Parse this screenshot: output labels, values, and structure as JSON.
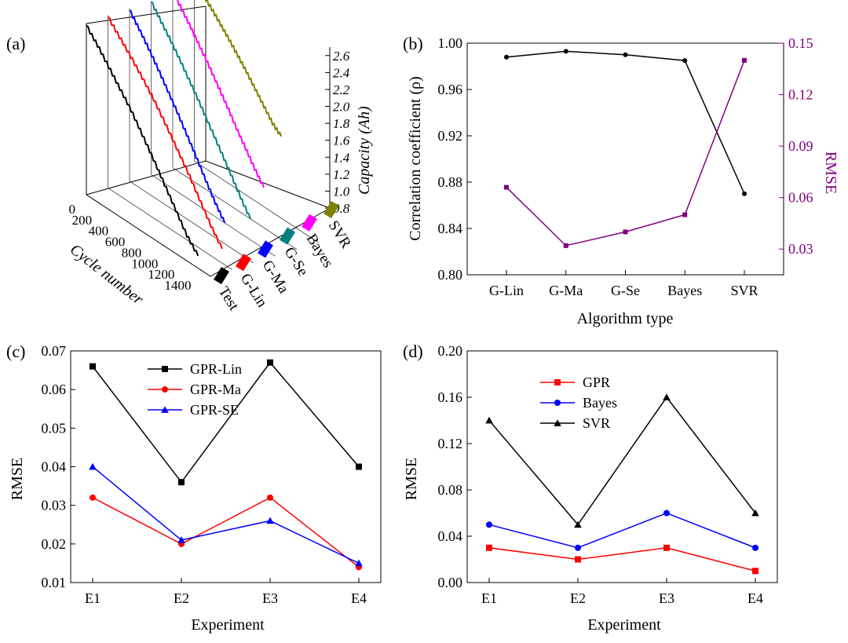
{
  "chart_data": [
    {
      "id": "a",
      "panel_label": "(a)",
      "type": "line3d",
      "title": "",
      "xlabel": "Cycle number",
      "zlabel": "Capacity (Ah)",
      "x_ticks": [
        "0",
        "200",
        "400",
        "600",
        "800",
        "1000",
        "1200",
        "1400"
      ],
      "z_ticks": [
        "0.8",
        "1.0",
        "1.2",
        "1.4",
        "1.6",
        "1.8",
        "2.0",
        "2.2",
        "2.4",
        "2.6"
      ],
      "zlim": [
        0.8,
        2.7
      ],
      "xlim": [
        0,
        1500
      ],
      "series": [
        {
          "name": "Test",
          "color": "#000000",
          "x_end": 1350,
          "values": [
            2.58,
            2.45,
            2.3,
            2.15,
            2.0,
            1.82,
            1.64,
            1.45,
            1.26,
            1.07,
            0.93
          ]
        },
        {
          "name": "G-Lin",
          "color": "#ff0000",
          "x_end": 1380,
          "values": [
            2.6,
            2.47,
            2.34,
            2.2,
            2.05,
            1.88,
            1.7,
            1.52,
            1.32,
            1.12,
            0.95
          ]
        },
        {
          "name": "G-Ma",
          "color": "#0000ff",
          "x_end": 1150,
          "values": [
            2.6,
            2.47,
            2.33,
            2.18,
            2.02,
            1.86,
            1.69,
            1.52,
            1.34,
            1.17,
            1.02
          ]
        },
        {
          "name": "G-Se",
          "color": "#008080",
          "x_end": 1200,
          "values": [
            2.62,
            2.48,
            2.34,
            2.19,
            2.03,
            1.87,
            1.7,
            1.53,
            1.36,
            1.18,
            1.02
          ]
        },
        {
          "name": "Bayes",
          "color": "#ff00ff",
          "x_end": 1100,
          "values": [
            2.65,
            2.53,
            2.4,
            2.26,
            2.12,
            1.97,
            1.82,
            1.66,
            1.51,
            1.36,
            1.22
          ]
        },
        {
          "name": "SVR",
          "color": "#808000",
          "x_end": 1050,
          "values": [
            2.7,
            2.61,
            2.52,
            2.42,
            2.32,
            2.21,
            2.1,
            1.98,
            1.86,
            1.74,
            1.66
          ]
        }
      ]
    },
    {
      "id": "b",
      "panel_label": "(b)",
      "type": "line",
      "title": "",
      "xlabel": "Algorithm type",
      "ylabel": "Correlation coefficient (ρ)",
      "y2label": "RMSE",
      "categories": [
        "G-Lin",
        "G-Ma",
        "G-Se",
        "Bayes",
        "SVR"
      ],
      "ylim": [
        0.8,
        1.0
      ],
      "y_ticks": [
        "0.80",
        "0.84",
        "0.88",
        "0.92",
        "0.96",
        "1.00"
      ],
      "y2lim": [
        0.015,
        0.15
      ],
      "y2_ticks": [
        "0.03",
        "0.06",
        "0.09",
        "0.12",
        "0.15"
      ],
      "series": [
        {
          "name": "Correlation coefficient",
          "axis": "left",
          "color": "#000000",
          "marker": "circle",
          "values": [
            0.988,
            0.993,
            0.99,
            0.985,
            0.87
          ]
        },
        {
          "name": "RMSE",
          "axis": "right",
          "color": "#800080",
          "marker": "square",
          "values": [
            0.066,
            0.032,
            0.04,
            0.05,
            0.14
          ]
        }
      ]
    },
    {
      "id": "c",
      "panel_label": "(c)",
      "type": "line",
      "title": "",
      "xlabel": "Experiment",
      "ylabel": "RMSE",
      "categories": [
        "E1",
        "E2",
        "E3",
        "E4"
      ],
      "ylim": [
        0.01,
        0.07
      ],
      "y_ticks": [
        "0.01",
        "0.02",
        "0.03",
        "0.04",
        "0.05",
        "0.06",
        "0.07"
      ],
      "legend": "top-left",
      "series": [
        {
          "name": "GPR-Lin",
          "color": "#000000",
          "marker": "square",
          "values": [
            0.066,
            0.036,
            0.067,
            0.04
          ]
        },
        {
          "name": "GPR-Ma",
          "color": "#ff0000",
          "marker": "circle",
          "values": [
            0.032,
            0.02,
            0.032,
            0.014
          ]
        },
        {
          "name": "GPR-SE",
          "color": "#0000ff",
          "marker": "triangle",
          "values": [
            0.04,
            0.021,
            0.026,
            0.015
          ]
        }
      ]
    },
    {
      "id": "d",
      "panel_label": "(d)",
      "type": "line",
      "title": "",
      "xlabel": "Experiment",
      "ylabel": "RMSE",
      "categories": [
        "E1",
        "E2",
        "E3",
        "E4"
      ],
      "ylim": [
        0.0,
        0.2
      ],
      "y_ticks": [
        "0.00",
        "0.04",
        "0.08",
        "0.12",
        "0.16",
        "0.20"
      ],
      "legend": "top-left",
      "series": [
        {
          "name": "GPR",
          "color": "#ff0000",
          "marker": "square",
          "values": [
            0.03,
            0.02,
            0.03,
            0.01
          ]
        },
        {
          "name": "Bayes",
          "color": "#0000ff",
          "marker": "circle",
          "values": [
            0.05,
            0.03,
            0.06,
            0.03
          ]
        },
        {
          "name": "SVR",
          "color": "#000000",
          "marker": "triangle",
          "values": [
            0.14,
            0.05,
            0.16,
            0.06
          ]
        }
      ]
    }
  ]
}
